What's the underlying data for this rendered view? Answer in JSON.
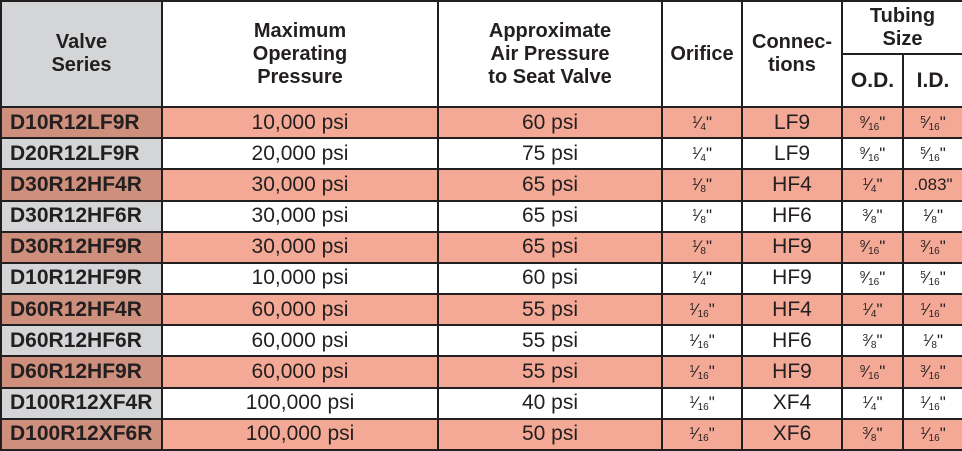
{
  "headers": {
    "series": [
      "Valve",
      "Series"
    ],
    "pressure": [
      "Maximum",
      "Operating",
      "Pressure"
    ],
    "air": [
      "Approximate",
      "Air Pressure",
      "to Seat Valve"
    ],
    "orifice": "Orifice",
    "connections": [
      "Connec-",
      "tions"
    ],
    "tubing": [
      "Tubing",
      "Size"
    ],
    "od": "O.D.",
    "id": "I.D."
  },
  "rows": [
    {
      "series": "D10R12LF9R",
      "pressure": "10,000 psi",
      "air": "60 psi",
      "orifice": "1/4\"",
      "connection": "LF9",
      "od": "9/16\"",
      "id": "5/16\"",
      "shade": "pink"
    },
    {
      "series": "D20R12LF9R",
      "pressure": "20,000 psi",
      "air": "75 psi",
      "orifice": "1/4\"",
      "connection": "LF9",
      "od": "9/16\"",
      "id": "5/16\"",
      "shade": "white"
    },
    {
      "series": "D30R12HF4R",
      "pressure": "30,000 psi",
      "air": "65 psi",
      "orifice": "1/8\"",
      "connection": "HF4",
      "od": "1/4\"",
      "id": ".083\"",
      "shade": "pink"
    },
    {
      "series": "D30R12HF6R",
      "pressure": "30,000 psi",
      "air": "65 psi",
      "orifice": "1/8\"",
      "connection": "HF6",
      "od": "3/8\"",
      "id": "1/8\"",
      "shade": "white"
    },
    {
      "series": "D30R12HF9R",
      "pressure": "30,000 psi",
      "air": "65 psi",
      "orifice": "1/8\"",
      "connection": "HF9",
      "od": "9/16\"",
      "id": "3/16\"",
      "shade": "pink"
    },
    {
      "series": "D10R12HF9R",
      "pressure": "10,000 psi",
      "air": "60 psi",
      "orifice": "1/4\"",
      "connection": "HF9",
      "od": "9/16\"",
      "id": "5/16\"",
      "shade": "white"
    },
    {
      "series": "D60R12HF4R",
      "pressure": "60,000 psi",
      "air": "55 psi",
      "orifice": "1/16\"",
      "connection": "HF4",
      "od": "1/4\"",
      "id": "1/16\"",
      "shade": "pink"
    },
    {
      "series": "D60R12HF6R",
      "pressure": "60,000 psi",
      "air": "55 psi",
      "orifice": "1/16\"",
      "connection": "HF6",
      "od": "3/8\"",
      "id": "1/8\"",
      "shade": "white"
    },
    {
      "series": "D60R12HF9R",
      "pressure": "60,000 psi",
      "air": "55 psi",
      "orifice": "1/16\"",
      "connection": "HF9",
      "od": "9/16\"",
      "id": "3/16\"",
      "shade": "pink"
    },
    {
      "series": "D100R12XF4R",
      "pressure": "100,000 psi",
      "air": "40 psi",
      "orifice": "1/16\"",
      "connection": "XF4",
      "od": "1/4\"",
      "id": "1/16\"",
      "shade": "white"
    },
    {
      "series": "D100R12XF6R",
      "pressure": "100,000 psi",
      "air": "50 psi",
      "orifice": "1/16\"",
      "connection": "XF6",
      "od": "3/8\"",
      "id": "1/16\"",
      "shade": "pink"
    }
  ],
  "colors": {
    "row_pink": "#f3a995",
    "series_pink": "#cf8f7d",
    "series_gray": "#d4d5d7",
    "border": "#231f20"
  }
}
